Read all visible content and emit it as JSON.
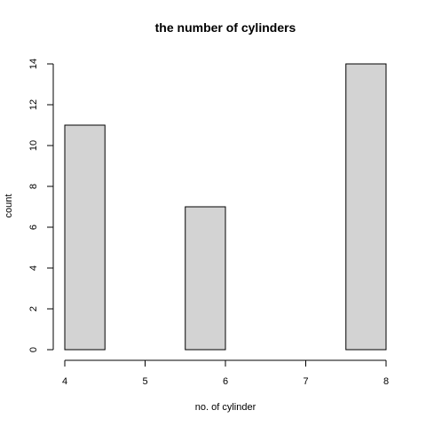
{
  "chart_data": {
    "type": "bar",
    "title": "the number of cylinders",
    "xlabel": "no. of cylinder",
    "ylabel": "count",
    "bins": [
      {
        "start": 4.0,
        "end": 4.5,
        "count": 11
      },
      {
        "start": 4.5,
        "end": 5.0,
        "count": 0
      },
      {
        "start": 5.0,
        "end": 5.5,
        "count": 0
      },
      {
        "start": 5.5,
        "end": 6.0,
        "count": 7
      },
      {
        "start": 6.0,
        "end": 6.5,
        "count": 0
      },
      {
        "start": 6.5,
        "end": 7.0,
        "count": 0
      },
      {
        "start": 7.0,
        "end": 7.5,
        "count": 0
      },
      {
        "start": 7.5,
        "end": 8.0,
        "count": 14
      }
    ],
    "xlim": [
      4,
      8
    ],
    "ylim": [
      0,
      14
    ],
    "x_ticks": [
      "4",
      "5",
      "6",
      "7",
      "8"
    ],
    "y_ticks": [
      "0",
      "2",
      "4",
      "6",
      "8",
      "10",
      "12",
      "14"
    ],
    "bar_color": "#d3d3d3",
    "border_color": "#000000",
    "grid": false
  }
}
